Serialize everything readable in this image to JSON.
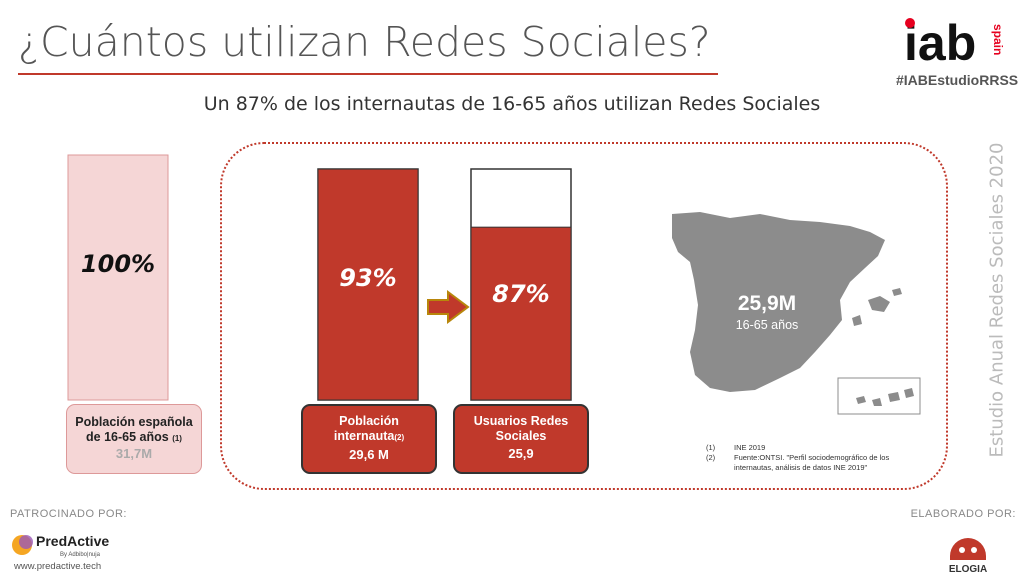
{
  "header": {
    "title": "¿Cuántos utilizan Redes Sociales?",
    "hashtag": "#IABEstudioRRSS",
    "logo_text": "iab",
    "logo_sub": "spain"
  },
  "subtitle": "Un 87% de los internautas de 16-65 años utilizan Redes Sociales",
  "side_text": "Estudio Anual Redes Sociales 2020",
  "colors": {
    "accent": "#c0392b",
    "light": "#f5d6d6",
    "map": "#8c8c8c"
  },
  "chart_data": {
    "type": "bar",
    "categories": [
      "Población española de 16-65 años",
      "Población internauta",
      "Usuarios Redes Sociales"
    ],
    "values": [
      100,
      93,
      87
    ],
    "value_labels": [
      "100%",
      "93%",
      "87%"
    ],
    "ylim": [
      0,
      100
    ],
    "title": "",
    "xlabel": "",
    "ylabel": "",
    "boxes": [
      {
        "line1": "Población española",
        "line2": "de 16-65 años",
        "note": "(1)",
        "value": "31,7M"
      },
      {
        "line1": "Población",
        "line2": "internauta",
        "note": "(2)",
        "value": "29,6 M"
      },
      {
        "line1": "Usuarios Redes",
        "line2": "Sociales",
        "note": "",
        "value": "25,9"
      }
    ]
  },
  "map": {
    "value": "25,9M",
    "range": "16-65 años"
  },
  "notes": [
    {
      "num": "(1)",
      "text": "INE 2019"
    },
    {
      "num": "(2)",
      "text": "Fuente:ONTSI. \"Perfil sociodemográfico de los"
    },
    {
      "num": "",
      "text": "internautas, análisis de datos INE 2019\""
    }
  ],
  "footer": {
    "sponsor_label": "PATROCINADO POR:",
    "sponsor_name": "PredActive",
    "sponsor_by": "By Adbibo|nuja",
    "sponsor_url": "www.predactive.tech",
    "made_label": "ELABORADO POR:",
    "made_name": "ELOGIA"
  }
}
